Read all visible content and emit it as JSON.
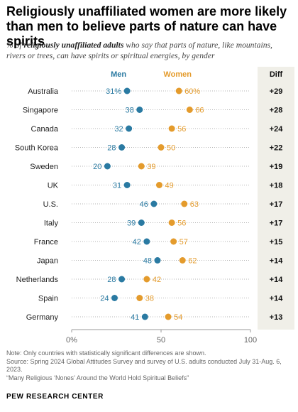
{
  "header": {
    "title": "Religiously unaffiliated women are more likely than men to believe parts of nature can have spirits",
    "subtitle_prefix": "% of ",
    "subtitle_bold": "religiously unaffiliated adults",
    "subtitle_suffix": " who say that parts of nature, like mountains, rivers or trees, can have spirits or spiritual energies, by gender"
  },
  "footer": {
    "note": "Note: Only countries with statistically significant differences are shown.",
    "source": "Source: Spring 2024 Global Attitudes Survey and survey of U.S. adults conducted July 31-Aug. 6, 2023.",
    "report": "“Many Religious ‘Nones’ Around the World Hold Spiritual Beliefs”",
    "brand": "PEW RESEARCH CENTER"
  },
  "colors": {
    "men": "#2a7aa2",
    "women": "#e49b2c",
    "diff_column_bg": "#f0efe8",
    "dotted_line": "#b5b5b5"
  },
  "chart_data": {
    "type": "dot plot",
    "categories": [
      "Australia",
      "Singapore",
      "Canada",
      "South Korea",
      "Sweden",
      "UK",
      "U.S.",
      "Italy",
      "France",
      "Japan",
      "Netherlands",
      "Spain",
      "Germany"
    ],
    "series": [
      {
        "name": "Men",
        "values": [
          31,
          38,
          32,
          28,
          20,
          31,
          46,
          39,
          42,
          48,
          28,
          24,
          41
        ],
        "labels": [
          "31%",
          "38",
          "32",
          "28",
          "20",
          "31",
          "46",
          "39",
          "42",
          "48",
          "28",
          "24",
          "41"
        ]
      },
      {
        "name": "Women",
        "values": [
          60,
          66,
          56,
          50,
          39,
          49,
          63,
          56,
          57,
          62,
          42,
          38,
          54
        ],
        "labels": [
          "60%",
          "66",
          "56",
          "50",
          "39",
          "49",
          "63",
          "56",
          "57",
          "62",
          "42",
          "38",
          "54"
        ]
      }
    ],
    "diff_header": "Diff",
    "diff": [
      "+29",
      "+28",
      "+24",
      "+22",
      "+19",
      "+18",
      "+17",
      "+17",
      "+15",
      "+14",
      "+14",
      "+14",
      "+13"
    ],
    "xlim": [
      0,
      100
    ],
    "ticks": [
      "0%",
      "50",
      "100"
    ]
  }
}
